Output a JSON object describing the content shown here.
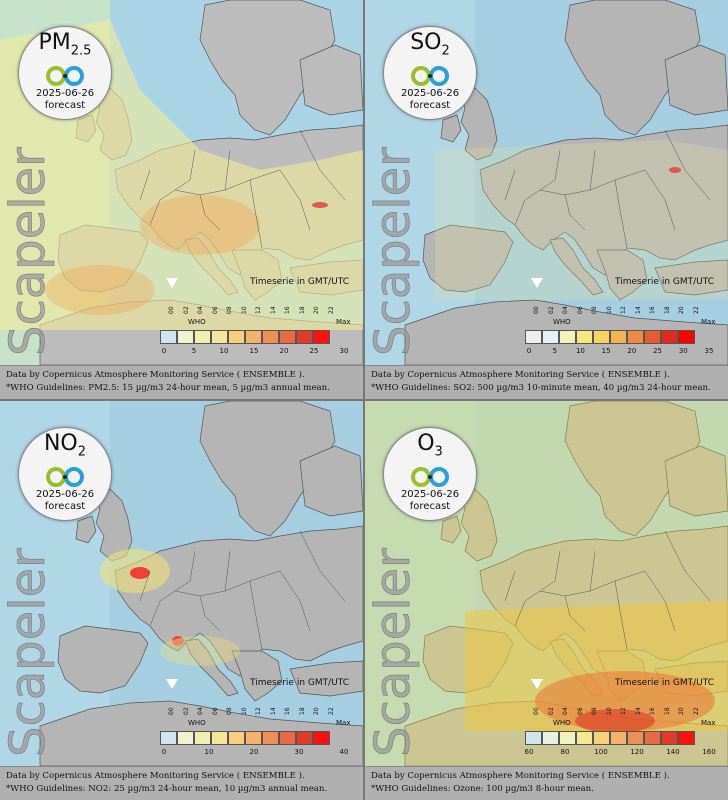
{
  "timeseries_label": "Timeserie in GMT/UTC",
  "watermark": "Scapeler",
  "tick_hours": [
    "00",
    "02",
    "04",
    "06",
    "08",
    "10",
    "12",
    "14",
    "16",
    "18",
    "20",
    "22"
  ],
  "who_label": "WHO",
  "max_label": "Max",
  "footer_line1": "Data by Copernicus Atmosphere Monitoring Service ( ENSEMBLE ).",
  "panels": [
    {
      "pollutant_main": "PM",
      "pollutant_sub": "2.5",
      "date": "2025-06-26",
      "forecast": "forecast",
      "footer_line2": "*WHO Guidelines: PM2.5: 15 µg/m3 24-hour mean, 5 µg/m3 annual mean.",
      "scale_labels": [
        "0",
        "5",
        "10",
        "15",
        "20",
        "25",
        "30"
      ],
      "scale_colors": [
        "#cfe6f0",
        "#f2f2d0",
        "#eef0b0",
        "#f5e79a",
        "#f7d07a",
        "#f3b36a",
        "#ee8f58",
        "#e86a44",
        "#e03a2a",
        "#ff1010"
      ]
    },
    {
      "pollutant_main": "SO",
      "pollutant_sub": "2",
      "date": "2025-06-26",
      "forecast": "forecast",
      "footer_line2": "*WHO Guidelines: SO2: 500 µg/m3 10-minute mean, 40 µg/m3 24-hour mean.",
      "scale_labels": [
        "0",
        "5",
        "10",
        "15",
        "20",
        "25",
        "30",
        "35"
      ],
      "scale_colors": [
        "#eeeee8",
        "#e4f0f4",
        "#f3f3b6",
        "#f6e87f",
        "#f5d35f",
        "#f0b54e",
        "#ec8c40",
        "#e85a30",
        "#e32a20",
        "#ff0000"
      ]
    },
    {
      "pollutant_main": "NO",
      "pollutant_sub": "2",
      "date": "2025-06-26",
      "forecast": "forecast",
      "footer_line2": "*WHO Guidelines: NO2: 25 µg/m3 24-hour mean, 10 µg/m3 annual mean.",
      "scale_labels": [
        "0",
        "10",
        "20",
        "30",
        "40"
      ],
      "scale_colors": [
        "#cfe6f0",
        "#f2f2d0",
        "#eef0b0",
        "#f5e79a",
        "#f7d07a",
        "#f3b36a",
        "#ee8f58",
        "#e86a44",
        "#e03a2a",
        "#ff1010"
      ]
    },
    {
      "pollutant_main": "O",
      "pollutant_sub": "3",
      "date": "2025-06-26",
      "forecast": "forecast",
      "footer_line2": "*WHO Guidelines: Ozone: 100 µg/m3 8-hour mean.",
      "scale_labels": [
        "60",
        "80",
        "100",
        "120",
        "140",
        "160"
      ],
      "scale_colors": [
        "#cfe6f0",
        "#e8f2e0",
        "#f2f2c0",
        "#f5e790",
        "#f7d07a",
        "#f3b36a",
        "#ee8f58",
        "#e86a44",
        "#e03a2a",
        "#ff1010"
      ]
    }
  ]
}
